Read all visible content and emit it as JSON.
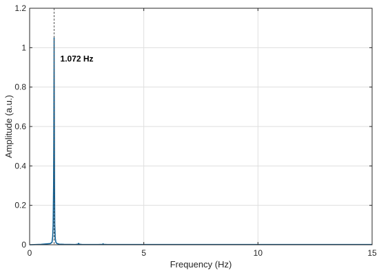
{
  "chart_data": {
    "type": "line",
    "xlabel": "Frequency (Hz)",
    "ylabel": "Amplitude (a.u.)",
    "xlim": [
      0,
      15
    ],
    "ylim": [
      0,
      1.2
    ],
    "xticks": [
      0,
      5,
      10,
      15
    ],
    "yticks": [
      0,
      0.2,
      0.4,
      0.6,
      0.8,
      1,
      1.2
    ],
    "grid": true,
    "legend": "none",
    "colors": {
      "series": "#0b5f95",
      "grid": "#dedede",
      "axis": "#262626",
      "marker_line": "#555555"
    },
    "series": [
      {
        "x": [
          0,
          0.5,
          0.9,
          0.98,
          1.01,
          1.03,
          1.05,
          1.06,
          1.065,
          1.07,
          1.072,
          1.074,
          1.078,
          1.09,
          1.1,
          1.12,
          1.15,
          1.2,
          1.3,
          1.5,
          2.0,
          2.12,
          2.144,
          2.17,
          2.3,
          3.0,
          3.2,
          3.216,
          3.24,
          3.4,
          5,
          10,
          15
        ],
        "y": [
          0.0,
          0.002,
          0.006,
          0.012,
          0.04,
          0.1,
          0.3,
          0.55,
          0.75,
          0.91,
          1.05,
          0.91,
          0.75,
          0.3,
          0.1,
          0.035,
          0.012,
          0.006,
          0.003,
          0.002,
          0.001,
          0.003,
          0.007,
          0.003,
          0.001,
          0.001,
          0.002,
          0.005,
          0.002,
          0.001,
          0.001,
          0.001,
          0.001
        ]
      }
    ],
    "annotations": [
      {
        "x": 1.072,
        "text": "1.072 Hz",
        "label_y": 0.93
      }
    ]
  }
}
